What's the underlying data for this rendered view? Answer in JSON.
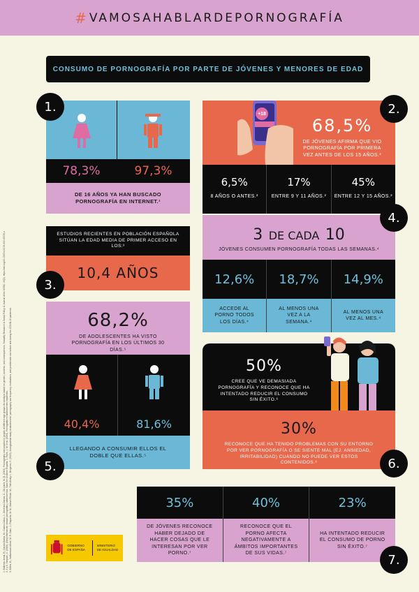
{
  "header": {
    "hash": "#",
    "text": "VAMOSAHABLARDEPORNOGRAFÍA"
  },
  "title": "CONSUMO DE PORNOGRAFÍA POR PARTE DE JÓVENES Y MENORES DE EDAD",
  "card1": {
    "number": "1.",
    "pct_girls": "78,3%",
    "pct_boys": "97,3%",
    "caption": "DE 16 AÑOS YA HAN BUSCADO PORNOGRAFÍA EN INTERNET.¹"
  },
  "card2": {
    "number": "2.",
    "phone_badge": "+18",
    "headline": "68,5%",
    "sub": "DE JÓVENES AFIRMA QUE VIO PORNOGRAFÍA POR PRIMERA VEZ ANTES DE LOS 15 AÑOS.²",
    "stats": [
      {
        "value": "6,5%",
        "label": "8 AÑOS O ANTES.²"
      },
      {
        "value": "17%",
        "label": "ENTRE 9 Y 11 AÑOS.²"
      },
      {
        "value": "45%",
        "label": "ENTRE 12 Y 15 AÑOS.²"
      }
    ]
  },
  "card3": {
    "number": "3.",
    "text": "ESTUDIOS RECIENTES EN POBLACIÓN ESPAÑOLA SITÚAN LA EDAD MEDIA DE PRIMER ACCESO EN LOS:³",
    "value": "10,4 AÑOS"
  },
  "card4": {
    "number": "4.",
    "big": "3",
    "mid": "DE CADA",
    "big2": "10",
    "sub": "JÓVENES CONSUMEN PORNOGRAFÍA TODAS LAS SEMANAS.⁴",
    "stats": [
      {
        "value": "12,6%",
        "label": "ACCEDE AL PORNO TODOS LOS DÍAS.⁴"
      },
      {
        "value": "18,7%",
        "label": "AL MENOS UNA VEZ A LA SEMANA.⁴"
      },
      {
        "value": "14,9%",
        "label": "AL MENOS UNA VEZ AL MES.⁴"
      }
    ]
  },
  "card5": {
    "number": "5.",
    "headline": "68,2%",
    "sub": "DE ADOLESCENTES HA VISTO PORNOGRAFÍA EN LOS ÚLTIMOS 30 DÍAS.⁵",
    "pct_girls": "40,4%",
    "pct_boys": "81,6%",
    "caption": "LLEGANDO A CONSUMIR ELLOS EL DOBLE QUE ELLAS.⁵"
  },
  "card6": {
    "number": "6.",
    "value1": "50%",
    "text1": "CREE QUE VE DEMASIADA PORNOGRAFÍA Y RECONOCE QUE HA INTENTADO REDUCIR EL CONSUMO SIN ÉXITO.⁶",
    "value2": "30%",
    "text2": "RECONOCE QUE HA TENIDO PROBLEMAS CON SU ENTORNO POR VER PORNOGRAFÍA O SE SIENTE MAL (EJ. ANSIEDAD, IRRITABILIDAD) CUANDO NO PUEDE VER ESTOS CONTENIDOS.⁶"
  },
  "card7": {
    "number": "7.",
    "stats": [
      {
        "value": "35%",
        "label": "DE JÓVENES RECONOCE HABER DEJADO DE HACER COSAS QUE LE INTERESAN POR VER PORNO.⁷"
      },
      {
        "value": "40%",
        "label": "RECONOCE QUE EL PORNO AFECTA NEGATIVAMENTE A ÁMBITOS IMPORTANTES DE SUS VIDAS.⁷"
      },
      {
        "value": "23%",
        "label": "HA INTENTADO REDUCIR EL CONSUMO DE PORNO SIN ÉXITO.⁷"
      }
    ]
  },
  "logo": {
    "left": "GOBIERNO DE ESPAÑA",
    "right": "MINISTERIO DE IGUALDAD"
  },
  "references": [
    "1. Ballester-Arnal, R.; García-Barba, M.; Castro-Calvo, J.; Giménez-García, C.; Gil-Llario, M. D. (2023). Pornography consumption in people of different age groups: An analysis based on gender, contents, and consequences. Sexuality Research & Social Policy: A Journal of the NSRC. 20(2). https://doi.org/10.1007/s13178-022-00720-z",
    "2, 4 y 6. Sanjuán, C. (2020). (Des)información sexual: pornografía y adolescencia. Save the Children España. 3. Farré, J. M. et al. (2020). Pornografía en adolescentes españoles.",
    "5. Bőthe, B.; Vaillancourt-Morel, M. P.; Dion, J.; Paquette, M. M.; Massé-Pfister, M.; Tóth-Király, I.; Bergeron, S. (2022). A longitudinal study of adolescents' pornography use frequency, motivations, and problematic use before and during the COVID-19 pandemic.",
    "7. Ballester-Arnal, R.; Castro-Calvo, J.; García-Barba, M.; Ruiz-Palomino, E.; Gil-Llario, M. D. (2021). Problematic and non-problematic engagement in Online Sexual Activities across the lifespan."
  ]
}
